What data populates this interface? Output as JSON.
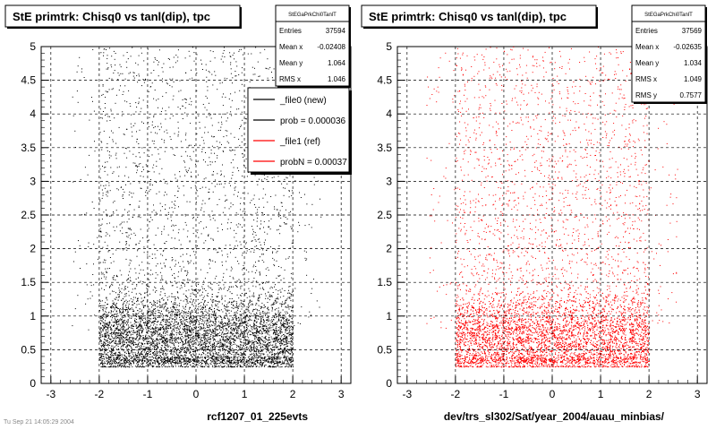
{
  "footer_text": "Tu Sep 21 14:05:29 2004",
  "chart_data": [
    {
      "type": "scatter",
      "title": "StE primtrk: Chisq0 vs tanl(dip), tpc",
      "xlabel": "rcf1207_01_225evts",
      "ylabel": "",
      "xlim": [
        -3.2,
        3.2
      ],
      "ylim": [
        0,
        5
      ],
      "xticks": [
        "-3",
        "-2",
        "-1",
        "0",
        "1",
        "2",
        "3"
      ],
      "yticks": [
        "0",
        "0.5",
        "1",
        "1.5",
        "2",
        "2.5",
        "3",
        "3.5",
        "4",
        "4.5",
        "5"
      ],
      "grid": true,
      "color": "#000000",
      "density": {
        "x_range": [
          -2,
          2
        ],
        "dense_y_range": [
          0.3,
          1.3
        ],
        "peak_y": 0.7
      },
      "stats": {
        "header": "StEGaPrkChi0TanlT",
        "rows": [
          {
            "label": "Entries",
            "value": "37594"
          },
          {
            "label": "Mean x",
            "value": "-0.02408"
          },
          {
            "label": "Mean y",
            "value": "1.064"
          },
          {
            "label": "RMS x",
            "value": "1.046"
          }
        ]
      },
      "legend": {
        "placement": "top-right",
        "entries": [
          {
            "label": "_file0 (new)",
            "color": "#000000"
          },
          {
            "label": "prob = 0.000036",
            "color": "#000000"
          },
          {
            "label": "_file1 (ref)",
            "color": "#ff0000"
          },
          {
            "label": "probN = 0.00037",
            "color": "#ff0000"
          }
        ]
      }
    },
    {
      "type": "scatter",
      "title": "StE primtrk: Chisq0 vs tanl(dip), tpc",
      "xlabel": "dev/trs_sl302/Sat/year_2004/auau_minbias/",
      "ylabel": "",
      "xlim": [
        -3.2,
        3.2
      ],
      "ylim": [
        0,
        5
      ],
      "xticks": [
        "-3",
        "-2",
        "-1",
        "0",
        "1",
        "2",
        "3"
      ],
      "yticks": [
        "0",
        "0.5",
        "1",
        "1.5",
        "2",
        "2.5",
        "3",
        "3.5",
        "4",
        "4.5",
        "5"
      ],
      "grid": true,
      "color": "#ff0000",
      "density": {
        "x_range": [
          -2,
          2
        ],
        "dense_y_range": [
          0.3,
          1.3
        ],
        "peak_y": 0.7
      },
      "stats": {
        "header": "StEGaPrkChi0TanlT",
        "rows": [
          {
            "label": "Entries",
            "value": "37569"
          },
          {
            "label": "Mean x",
            "value": "-0.02635"
          },
          {
            "label": "Mean y",
            "value": "1.034"
          },
          {
            "label": "RMS x",
            "value": "1.049"
          },
          {
            "label": "RMS y",
            "value": "0.7577"
          }
        ]
      }
    }
  ]
}
